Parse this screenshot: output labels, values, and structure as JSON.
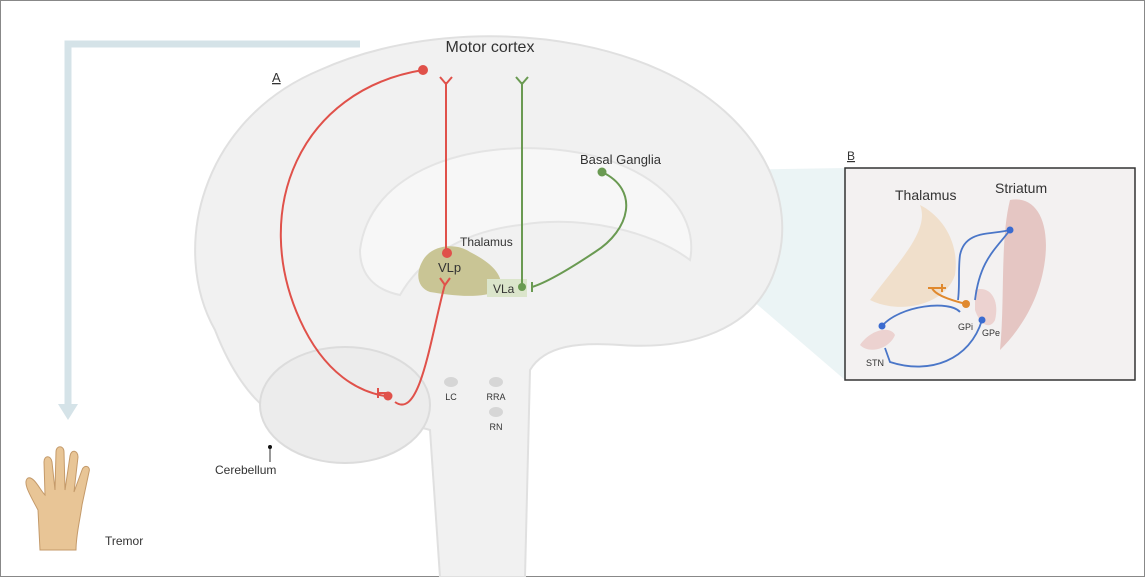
{
  "panel_a": {
    "title": "Motor cortex",
    "label": "A",
    "basal_ganglia": "Basal Ganglia",
    "thalamus": "Thalamus",
    "vlp": "VLp",
    "vla": "VLa",
    "lc": "LC",
    "rra": "RRA",
    "rn": "RN",
    "cerebellum": "Cerebellum",
    "tremor": "Tremor"
  },
  "panel_b": {
    "label": "B",
    "thalamus": "Thalamus",
    "striatum": "Striatum",
    "gpi": "GPi",
    "gpe": "GPe",
    "stn": "STN"
  }
}
